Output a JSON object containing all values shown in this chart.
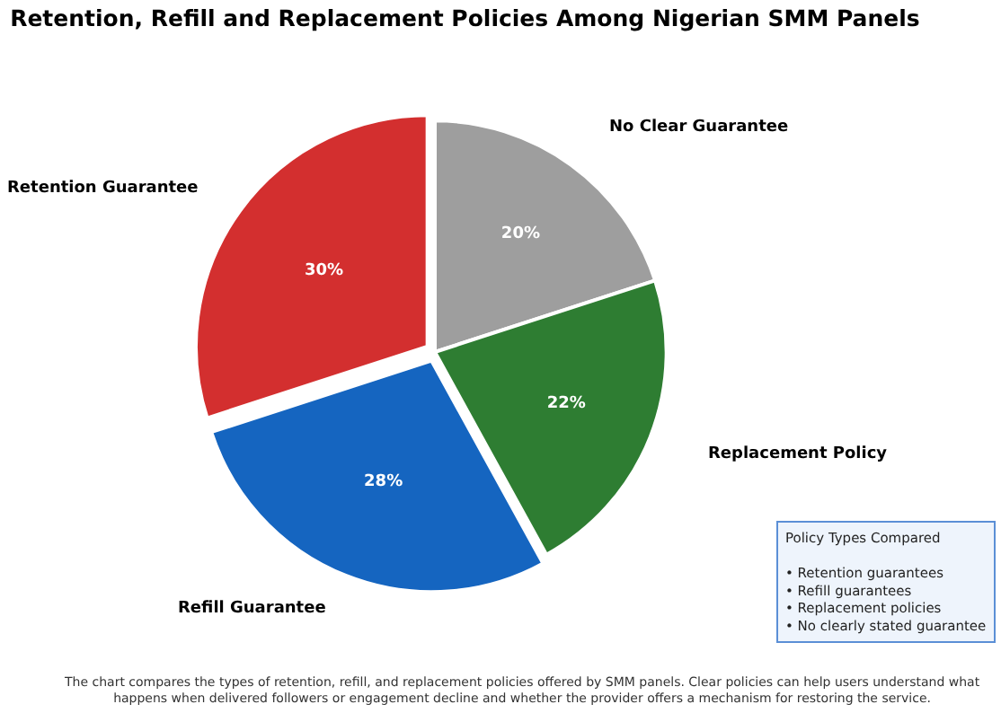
{
  "chart_data": {
    "type": "pie",
    "title": "Retention, Refill and Replacement Policies Among Nigerian SMM Panels",
    "categories": [
      "No Clear Guarantee",
      "Replacement Policy",
      "Refill Guarantee",
      "Retention Guarantee"
    ],
    "values": [
      20,
      22,
      28,
      30
    ],
    "value_labels": [
      "20%",
      "22%",
      "28%",
      "30%"
    ],
    "colors": [
      "#9e9e9e",
      "#2e7d32",
      "#1565c0",
      "#d32f2f"
    ],
    "annotations": [
      "Policy Types Compared\n\n• Retention guarantees\n• Refill guarantees\n• Replacement policies\n• No clearly stated guarantee",
      "The chart compares the types of retention, refill, and replacement policies offered by SMM panels. Clear policies can help users understand what\nhappens when delivered followers or engagement decline and whether the provider offers a mechanism for restoring the service."
    ],
    "legend": false
  }
}
